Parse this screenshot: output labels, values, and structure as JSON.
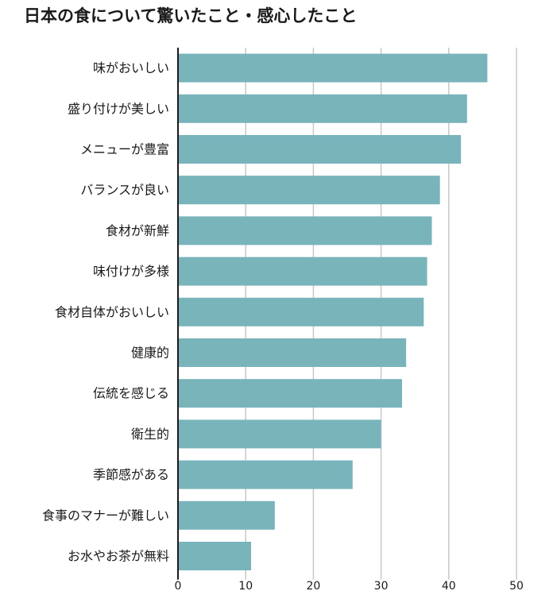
{
  "page": {
    "title": "日本の食について驚いたこと・感心したこと"
  },
  "colors": {
    "bar": "#79b4bb",
    "grid": "#c8c8c8",
    "axis": "#1a1a1a",
    "text": "#1a1a1a"
  },
  "chart_data": {
    "type": "bar",
    "orientation": "horizontal",
    "title": "日本の食について驚いたこと・感心したこと",
    "xlabel": "",
    "ylabel": "",
    "xlim": [
      0,
      50
    ],
    "xticks": [
      "0",
      "10",
      "20",
      "30",
      "40",
      "50"
    ],
    "grid": true,
    "legend": "none",
    "categories": [
      "味がおいしい",
      "盛り付けが美しい",
      "メニューが豊富",
      "バランスが良い",
      "食材が新鮮",
      "味付けが多様",
      "食材自体がおいしい",
      "健康的",
      "伝統を感じる",
      "衛生的",
      "季節感がある",
      "食事のマナーが難しい",
      "お水やお茶が無料"
    ],
    "values": [
      45.7,
      42.7,
      41.8,
      38.7,
      37.5,
      36.8,
      36.3,
      33.7,
      33.1,
      30.0,
      25.8,
      14.3,
      10.8
    ]
  }
}
